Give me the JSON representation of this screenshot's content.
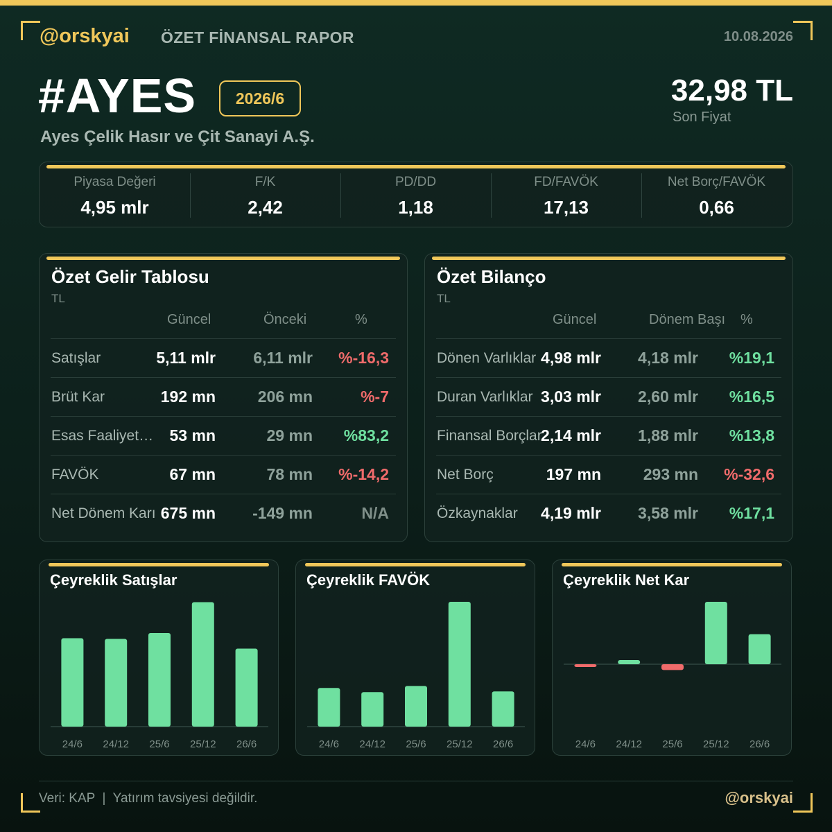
{
  "header": {
    "brand": "@orskyai",
    "report_title": "ÖZET FİNANSAL RAPOR",
    "date": "10.08.2026",
    "ticker": "#AYES",
    "period": "2026/6",
    "company": "Ayes Çelik Hasır ve Çit Sanayi A.Ş.",
    "price": "32,98 TL",
    "price_label": "Son Fiyat"
  },
  "metrics": [
    {
      "label": "Piyasa Değeri",
      "value": "4,95 mlr"
    },
    {
      "label": "F/K",
      "value": "2,42"
    },
    {
      "label": "PD/DD",
      "value": "1,18"
    },
    {
      "label": "FD/FAVÖK",
      "value": "17,13"
    },
    {
      "label": "Net Borç/FAVÖK",
      "value": "0,66"
    }
  ],
  "income": {
    "title": "Özet Gelir Tablosu",
    "unit": "TL",
    "headers": {
      "current": "Güncel",
      "previous": "Önceki",
      "pct": "%"
    },
    "rows": [
      {
        "name": "Satışlar",
        "current": "5,11 mlr",
        "previous": "6,11 mlr",
        "pct": "%-16,3",
        "trend": "neg"
      },
      {
        "name": "Brüt Kar",
        "current": "192 mn",
        "previous": "206 mn",
        "pct": "%-7",
        "trend": "neg"
      },
      {
        "name": "Esas Faaliyet Karı",
        "current": "53 mn",
        "previous": "29 mn",
        "pct": "%83,2",
        "trend": "pos"
      },
      {
        "name": "FAVÖK",
        "current": "67 mn",
        "previous": "78 mn",
        "pct": "%-14,2",
        "trend": "neg"
      },
      {
        "name": "Net Dönem Karı",
        "current": "675 mn",
        "previous": "-149 mn",
        "pct": "N/A",
        "trend": "na"
      }
    ]
  },
  "balance": {
    "title": "Özet Bilanço",
    "unit": "TL",
    "headers": {
      "current": "Güncel",
      "previous": "Dönem Başı",
      "pct": "%"
    },
    "rows": [
      {
        "name": "Dönen Varlıklar",
        "current": "4,98 mlr",
        "previous": "4,18 mlr",
        "pct": "%19,1",
        "trend": "pos"
      },
      {
        "name": "Duran Varlıklar",
        "current": "3,03 mlr",
        "previous": "2,60 mlr",
        "pct": "%16,5",
        "trend": "pos"
      },
      {
        "name": "Finansal Borçlar",
        "current": "2,14 mlr",
        "previous": "1,88 mlr",
        "pct": "%13,8",
        "trend": "pos"
      },
      {
        "name": "Net Borç",
        "current": "197 mn",
        "previous": "293 mn",
        "pct": "%-32,6",
        "trend": "neg"
      },
      {
        "name": "Özkaynaklar",
        "current": "4,19 mlr",
        "previous": "3,58 mlr",
        "pct": "%17,1",
        "trend": "pos"
      }
    ]
  },
  "charts": {
    "sales_title": "Çeyreklik Satışlar",
    "ebitda_title": "Çeyreklik FAVÖK",
    "net_title": "Çeyreklik Net Kar"
  },
  "chart_data": [
    {
      "type": "bar",
      "title": "Çeyreklik Satışlar",
      "categories": [
        "24/6",
        "24/12",
        "25/6",
        "25/12",
        "26/6"
      ],
      "values": [
        2.55,
        2.53,
        2.7,
        3.59,
        2.25
      ],
      "ylim": [
        0,
        3.6
      ],
      "colors": {
        "positive": "#6fe0a0",
        "negative": "#f06b6b"
      }
    },
    {
      "type": "bar",
      "title": "Çeyreklik FAVÖK",
      "categories": [
        "24/6",
        "24/12",
        "25/6",
        "25/12",
        "26/6"
      ],
      "values": [
        56,
        50,
        59,
        181,
        51
      ],
      "ylim": [
        0,
        181
      ],
      "colors": {
        "positive": "#6fe0a0",
        "negative": "#f06b6b"
      }
    },
    {
      "type": "bar",
      "title": "Çeyreklik Net Kar",
      "categories": [
        "24/6",
        "24/12",
        "25/6",
        "25/12",
        "26/6"
      ],
      "values": [
        -5,
        10,
        -14,
        150,
        72
      ],
      "ylim": [
        -150,
        150
      ],
      "colors": {
        "positive": "#6fe0a0",
        "negative": "#f06b6b"
      }
    }
  ],
  "footer": {
    "source": "Veri: KAP  |  Yatırım tavsiyesi değildir.",
    "brand": "@orskyai"
  }
}
